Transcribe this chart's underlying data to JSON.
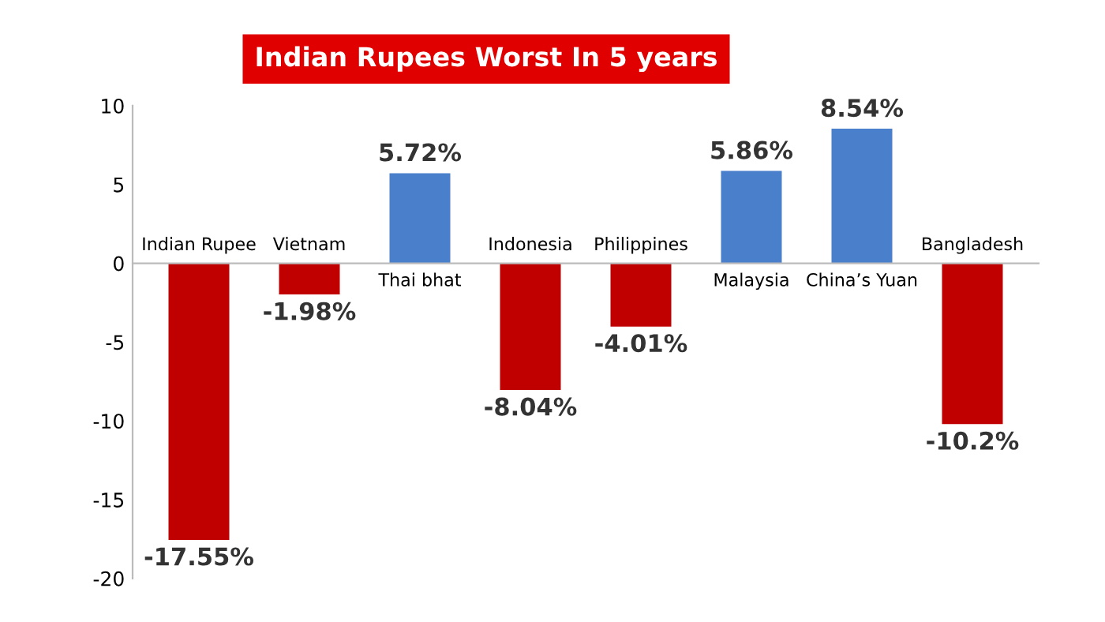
{
  "chart_data": {
    "type": "bar",
    "title": "Indian Rupees Worst In 5 years",
    "categories": [
      "Indian Rupee",
      "Vietnam",
      "Thai bhat",
      "Indonesia",
      "Philippines",
      "Malaysia",
      "China’s Yuan",
      "Bangladesh"
    ],
    "values": [
      -17.55,
      -1.98,
      5.72,
      -8.04,
      -4.01,
      5.86,
      8.54,
      -10.2
    ],
    "colors": [
      "#c00000",
      "#c00000",
      "#4a7fcc",
      "#c00000",
      "#c00000",
      "#4a7fcc",
      "#4a7fcc",
      "#c00000"
    ],
    "value_labels": [
      "-17.55%",
      "-1.98%",
      "5.72%",
      "-8.04%",
      "-4.01%",
      "5.86%",
      "8.54%",
      "-10.2%"
    ],
    "ylim": [
      -20,
      10
    ],
    "yticks": [
      -20,
      -15,
      -10,
      -5,
      0,
      5,
      10
    ],
    "grid": false
  }
}
